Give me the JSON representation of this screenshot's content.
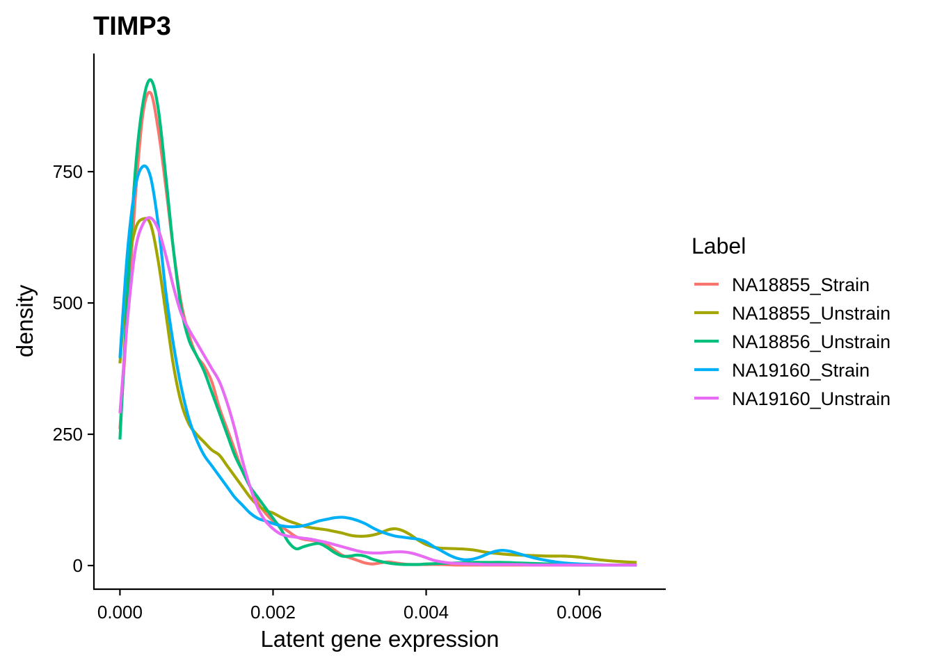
{
  "chart_data": {
    "type": "line",
    "title": "TIMP3",
    "xlabel": "Latent gene expression",
    "ylabel": "density",
    "xlim": [
      -0.00034,
      0.00713
    ],
    "ylim": [
      -45,
      975
    ],
    "x_ticks": [
      0.0,
      0.002,
      0.004,
      0.006
    ],
    "x_tick_labels": [
      "0.000",
      "0.002",
      "0.004",
      "0.006"
    ],
    "y_ticks": [
      0,
      250,
      500,
      750
    ],
    "y_tick_labels": [
      "0",
      "250",
      "500",
      "750"
    ],
    "grid": false,
    "legend": {
      "title": "Label",
      "position": "right"
    },
    "series": [
      {
        "name": "NA18855_Strain",
        "color": "#F8766D",
        "x": [
          0,
          0.0001,
          0.0002,
          0.0003,
          0.0004,
          0.0005,
          0.0006,
          0.0007,
          0.0008,
          0.0009,
          0.001,
          0.0011,
          0.0012,
          0.0013,
          0.0014,
          0.0015,
          0.0016,
          0.0017,
          0.0018,
          0.0019,
          0.002,
          0.0021,
          0.0022,
          0.0023,
          0.0024,
          0.0025,
          0.0026,
          0.0027,
          0.0028,
          0.0029,
          0.003,
          0.0031,
          0.0032,
          0.0033,
          0.0034,
          0.0035,
          0.0036,
          0.0037,
          0.0038,
          0.0039,
          0.004,
          0.0042,
          0.0044,
          0.0046,
          0.0048,
          0.005,
          0.0052,
          0.0054,
          0.0056,
          0.0058,
          0.006,
          0.0062,
          0.0064,
          0.0066,
          0.00675
        ],
        "y": [
          260,
          480,
          700,
          860,
          900,
          830,
          720,
          600,
          500,
          440,
          400,
          380,
          350,
          300,
          260,
          220,
          180,
          150,
          120,
          100,
          85,
          75,
          65,
          55,
          50,
          48,
          46,
          40,
          30,
          20,
          15,
          10,
          5,
          3,
          5,
          7,
          5,
          3,
          2,
          2,
          2,
          2,
          1,
          1,
          1,
          1,
          1,
          1,
          1,
          1,
          1,
          1,
          1,
          1,
          1
        ]
      },
      {
        "name": "NA18855_Unstrain",
        "color": "#A3A500",
        "x": [
          0,
          0.0001,
          0.0002,
          0.0003,
          0.0004,
          0.0005,
          0.0006,
          0.0007,
          0.0008,
          0.0009,
          0.001,
          0.0011,
          0.0012,
          0.0013,
          0.0014,
          0.0015,
          0.0016,
          0.0017,
          0.0018,
          0.0019,
          0.002,
          0.0021,
          0.0022,
          0.0023,
          0.0024,
          0.0025,
          0.0026,
          0.0027,
          0.0028,
          0.0029,
          0.003,
          0.0031,
          0.0032,
          0.0033,
          0.0034,
          0.0035,
          0.0036,
          0.0037,
          0.0038,
          0.0039,
          0.004,
          0.0041,
          0.0042,
          0.0044,
          0.0046,
          0.0048,
          0.005,
          0.0052,
          0.0054,
          0.0056,
          0.0058,
          0.006,
          0.0062,
          0.0064,
          0.0066,
          0.00675
        ],
        "y": [
          385,
          560,
          640,
          660,
          650,
          580,
          480,
          380,
          310,
          270,
          250,
          235,
          220,
          210,
          190,
          170,
          150,
          130,
          115,
          105,
          100,
          92,
          85,
          80,
          75,
          72,
          70,
          68,
          65,
          62,
          58,
          56,
          56,
          58,
          62,
          68,
          70,
          66,
          58,
          48,
          40,
          35,
          33,
          32,
          30,
          25,
          22,
          20,
          19,
          18,
          18,
          16,
          12,
          9,
          7,
          6
        ]
      },
      {
        "name": "NA18856_Unstrain",
        "color": "#00BF7D",
        "x": [
          0,
          0.0001,
          0.0002,
          0.0003,
          0.0004,
          0.0005,
          0.0006,
          0.0007,
          0.0008,
          0.0009,
          0.001,
          0.0011,
          0.0012,
          0.0013,
          0.0014,
          0.0015,
          0.0016,
          0.0017,
          0.0018,
          0.0019,
          0.002,
          0.0021,
          0.0022,
          0.0023,
          0.0024,
          0.0025,
          0.0026,
          0.0027,
          0.0028,
          0.0029,
          0.003,
          0.0031,
          0.0032,
          0.0033,
          0.0034,
          0.0035,
          0.0036,
          0.0037,
          0.0038,
          0.0039,
          0.004,
          0.0042,
          0.0044,
          0.0046,
          0.0048,
          0.005,
          0.0052,
          0.0054,
          0.0056,
          0.0058,
          0.006,
          0.0062,
          0.0064,
          0.0066,
          0.00675
        ],
        "y": [
          240,
          520,
          750,
          880,
          925,
          870,
          740,
          600,
          490,
          430,
          400,
          370,
          330,
          290,
          250,
          210,
          180,
          150,
          130,
          110,
          90,
          70,
          45,
          32,
          36,
          40,
          42,
          35,
          25,
          18,
          18,
          20,
          18,
          12,
          8,
          5,
          3,
          2,
          2,
          2,
          3,
          4,
          5,
          6,
          6,
          6,
          5,
          4,
          3,
          2,
          1,
          1,
          1,
          1,
          1
        ]
      },
      {
        "name": "NA19160_Strain",
        "color": "#00B0F6",
        "x": [
          0,
          0.0001,
          0.0002,
          0.0003,
          0.0004,
          0.0005,
          0.0006,
          0.0007,
          0.0008,
          0.0009,
          0.001,
          0.0011,
          0.0012,
          0.0013,
          0.0014,
          0.0015,
          0.0016,
          0.0017,
          0.0018,
          0.0019,
          0.002,
          0.0021,
          0.0022,
          0.0023,
          0.0024,
          0.0025,
          0.0026,
          0.0027,
          0.0028,
          0.0029,
          0.003,
          0.0031,
          0.0032,
          0.0033,
          0.0034,
          0.0035,
          0.0036,
          0.0037,
          0.0038,
          0.0039,
          0.004,
          0.0041,
          0.0042,
          0.0043,
          0.0044,
          0.0045,
          0.0046,
          0.0047,
          0.0048,
          0.0049,
          0.005,
          0.0051,
          0.0052,
          0.0054,
          0.0056,
          0.0058,
          0.006,
          0.0062,
          0.0064,
          0.0066,
          0.00675
        ],
        "y": [
          395,
          600,
          720,
          760,
          740,
          650,
          520,
          420,
          340,
          280,
          240,
          210,
          190,
          170,
          150,
          130,
          115,
          100,
          90,
          85,
          80,
          76,
          74,
          74,
          76,
          80,
          85,
          88,
          91,
          92,
          90,
          86,
          80,
          72,
          65,
          60,
          56,
          54,
          52,
          50,
          45,
          36,
          28,
          20,
          14,
          11,
          12,
          16,
          22,
          27,
          29,
          27,
          23,
          15,
          9,
          5,
          3,
          2,
          1,
          1,
          1
        ]
      },
      {
        "name": "NA19160_Unstrain",
        "color": "#E76BF3",
        "x": [
          0,
          0.0001,
          0.0002,
          0.0003,
          0.0004,
          0.0005,
          0.0006,
          0.0007,
          0.0008,
          0.0009,
          0.001,
          0.0011,
          0.0012,
          0.0013,
          0.0014,
          0.0015,
          0.0016,
          0.0017,
          0.0018,
          0.0019,
          0.002,
          0.0021,
          0.0022,
          0.0023,
          0.0024,
          0.0025,
          0.0026,
          0.0027,
          0.0028,
          0.0029,
          0.003,
          0.0031,
          0.0032,
          0.0033,
          0.0034,
          0.0035,
          0.0036,
          0.0037,
          0.0038,
          0.0039,
          0.004,
          0.0041,
          0.0042,
          0.0043,
          0.0044,
          0.0046,
          0.0048,
          0.005,
          0.0052,
          0.0054,
          0.0056,
          0.0058,
          0.006,
          0.0062,
          0.0064,
          0.0066,
          0.00675
        ],
        "y": [
          290,
          470,
          600,
          650,
          662,
          640,
          590,
          530,
          480,
          450,
          425,
          400,
          375,
          350,
          310,
          260,
          200,
          150,
          110,
          85,
          70,
          60,
          56,
          54,
          52,
          50,
          47,
          44,
          40,
          36,
          32,
          28,
          25,
          24,
          24,
          25,
          26,
          26,
          24,
          20,
          15,
          10,
          7,
          5,
          4,
          3,
          2,
          2,
          2,
          1,
          1,
          1,
          1,
          1,
          1,
          1,
          1
        ]
      }
    ]
  }
}
